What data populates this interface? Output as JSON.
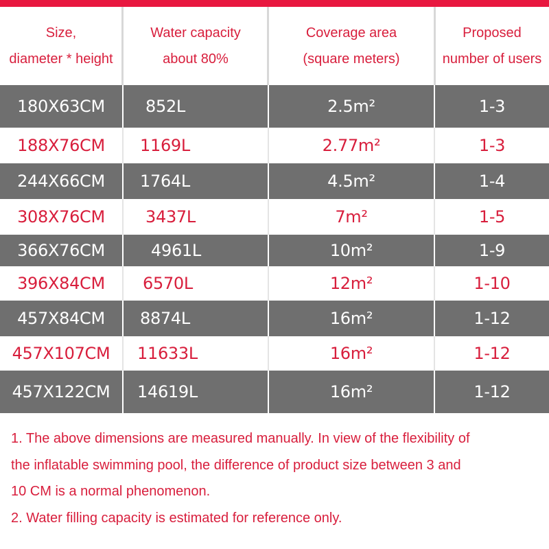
{
  "table": {
    "headers": [
      {
        "line1": "Size,",
        "line2": "diameter * height"
      },
      {
        "line1": "Water capacity",
        "line2": "about 80%"
      },
      {
        "line1": "Coverage area",
        "line2": "(square meters)"
      },
      {
        "line1": "Proposed",
        "line2": "number of users"
      }
    ],
    "rows": [
      {
        "size": "180X63CM",
        "capacity": "852L",
        "area": "2.5m²",
        "users": "1-3"
      },
      {
        "size": "188X76CM",
        "capacity": "1169L",
        "area": "2.77m²",
        "users": "1-3"
      },
      {
        "size": "244X66CM",
        "capacity": "1764L",
        "area": "4.5m²",
        "users": "1-4"
      },
      {
        "size": "308X76CM",
        "capacity": "3437L",
        "area": "7m²",
        "users": "1-5"
      },
      {
        "size": "366X76CM",
        "capacity": "4961L",
        "area": "10m²",
        "users": "1-9"
      },
      {
        "size": "396X84CM",
        "capacity": "6570L",
        "area": "12m²",
        "users": "1-10"
      },
      {
        "size": "457X84CM",
        "capacity": "8874L",
        "area": "16m²",
        "users": "1-12"
      },
      {
        "size": "457X107CM",
        "capacity": "11633L",
        "area": "16m²",
        "users": "1-12"
      },
      {
        "size": "457X122CM",
        "capacity": "14619L",
        "area": "16m²",
        "users": "1-12"
      }
    ]
  },
  "notes": {
    "line1": "1. The above dimensions are measured manually. In view of the flexibility of",
    "line2": "the inflatable swimming pool, the difference of product size between 3 and",
    "line3": "10 CM is a normal phenomenon.",
    "line4": "2. Water filling capacity is estimated for reference only."
  },
  "colors": {
    "accent": "#e8173f",
    "text_red": "#d81e3c",
    "row_gray": "#6f6f6f"
  }
}
